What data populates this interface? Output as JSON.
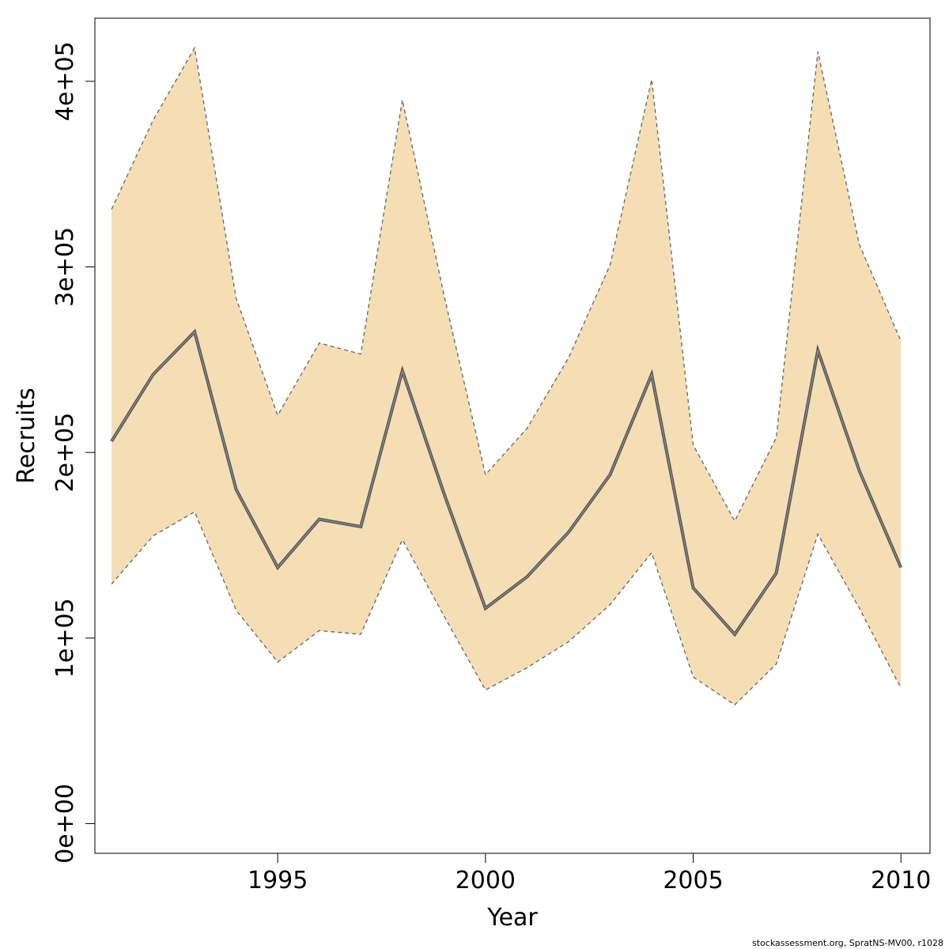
{
  "chart_data": {
    "type": "area",
    "xlabel": "Year",
    "ylabel": "Recruits",
    "xlim": [
      1990.6,
      2010.7
    ],
    "ylim": [
      -16000,
      434000
    ],
    "x_ticks": [
      1995,
      2000,
      2005,
      2010
    ],
    "y_ticks": [
      0,
      100000,
      200000,
      300000,
      400000
    ],
    "x_tick_labels": [
      "1995",
      "2000",
      "2005",
      "2010"
    ],
    "y_tick_labels": [
      "0e+00",
      "1e+05",
      "2e+05",
      "3e+05",
      "4e+05"
    ],
    "grid": false,
    "legend": "none",
    "x": [
      1991,
      1992,
      1993,
      1994,
      1995,
      1996,
      1997,
      1998,
      1999,
      2000,
      2001,
      2002,
      2003,
      2004,
      2005,
      2006,
      2007,
      2008,
      2009,
      2010
    ],
    "series": [
      {
        "role": "estimate",
        "values": [
          206000,
          242000,
          265000,
          180000,
          138000,
          164000,
          160000,
          244000,
          178000,
          116000,
          133000,
          157000,
          188000,
          242000,
          127000,
          102000,
          135000,
          255000,
          190000,
          138000
        ]
      },
      {
        "role": "upper",
        "values": [
          331000,
          379000,
          418000,
          283000,
          220000,
          259000,
          253000,
          390000,
          285000,
          188000,
          213000,
          251000,
          301000,
          401000,
          204000,
          163000,
          208000,
          416000,
          312000,
          260000
        ]
      },
      {
        "role": "lower",
        "values": [
          129000,
          155000,
          168000,
          115000,
          87000,
          104000,
          102000,
          153000,
          112000,
          72000,
          84000,
          98000,
          118000,
          146000,
          79000,
          64000,
          86000,
          156000,
          116000,
          73000
        ]
      }
    ],
    "colors": {
      "band_fill": "#f5deb3",
      "band_edge": "#666666",
      "line": "#555555",
      "axis": "#000000"
    }
  },
  "footer": {
    "caption": "stockassessment.org, SpratNS-MV00, r1028"
  }
}
